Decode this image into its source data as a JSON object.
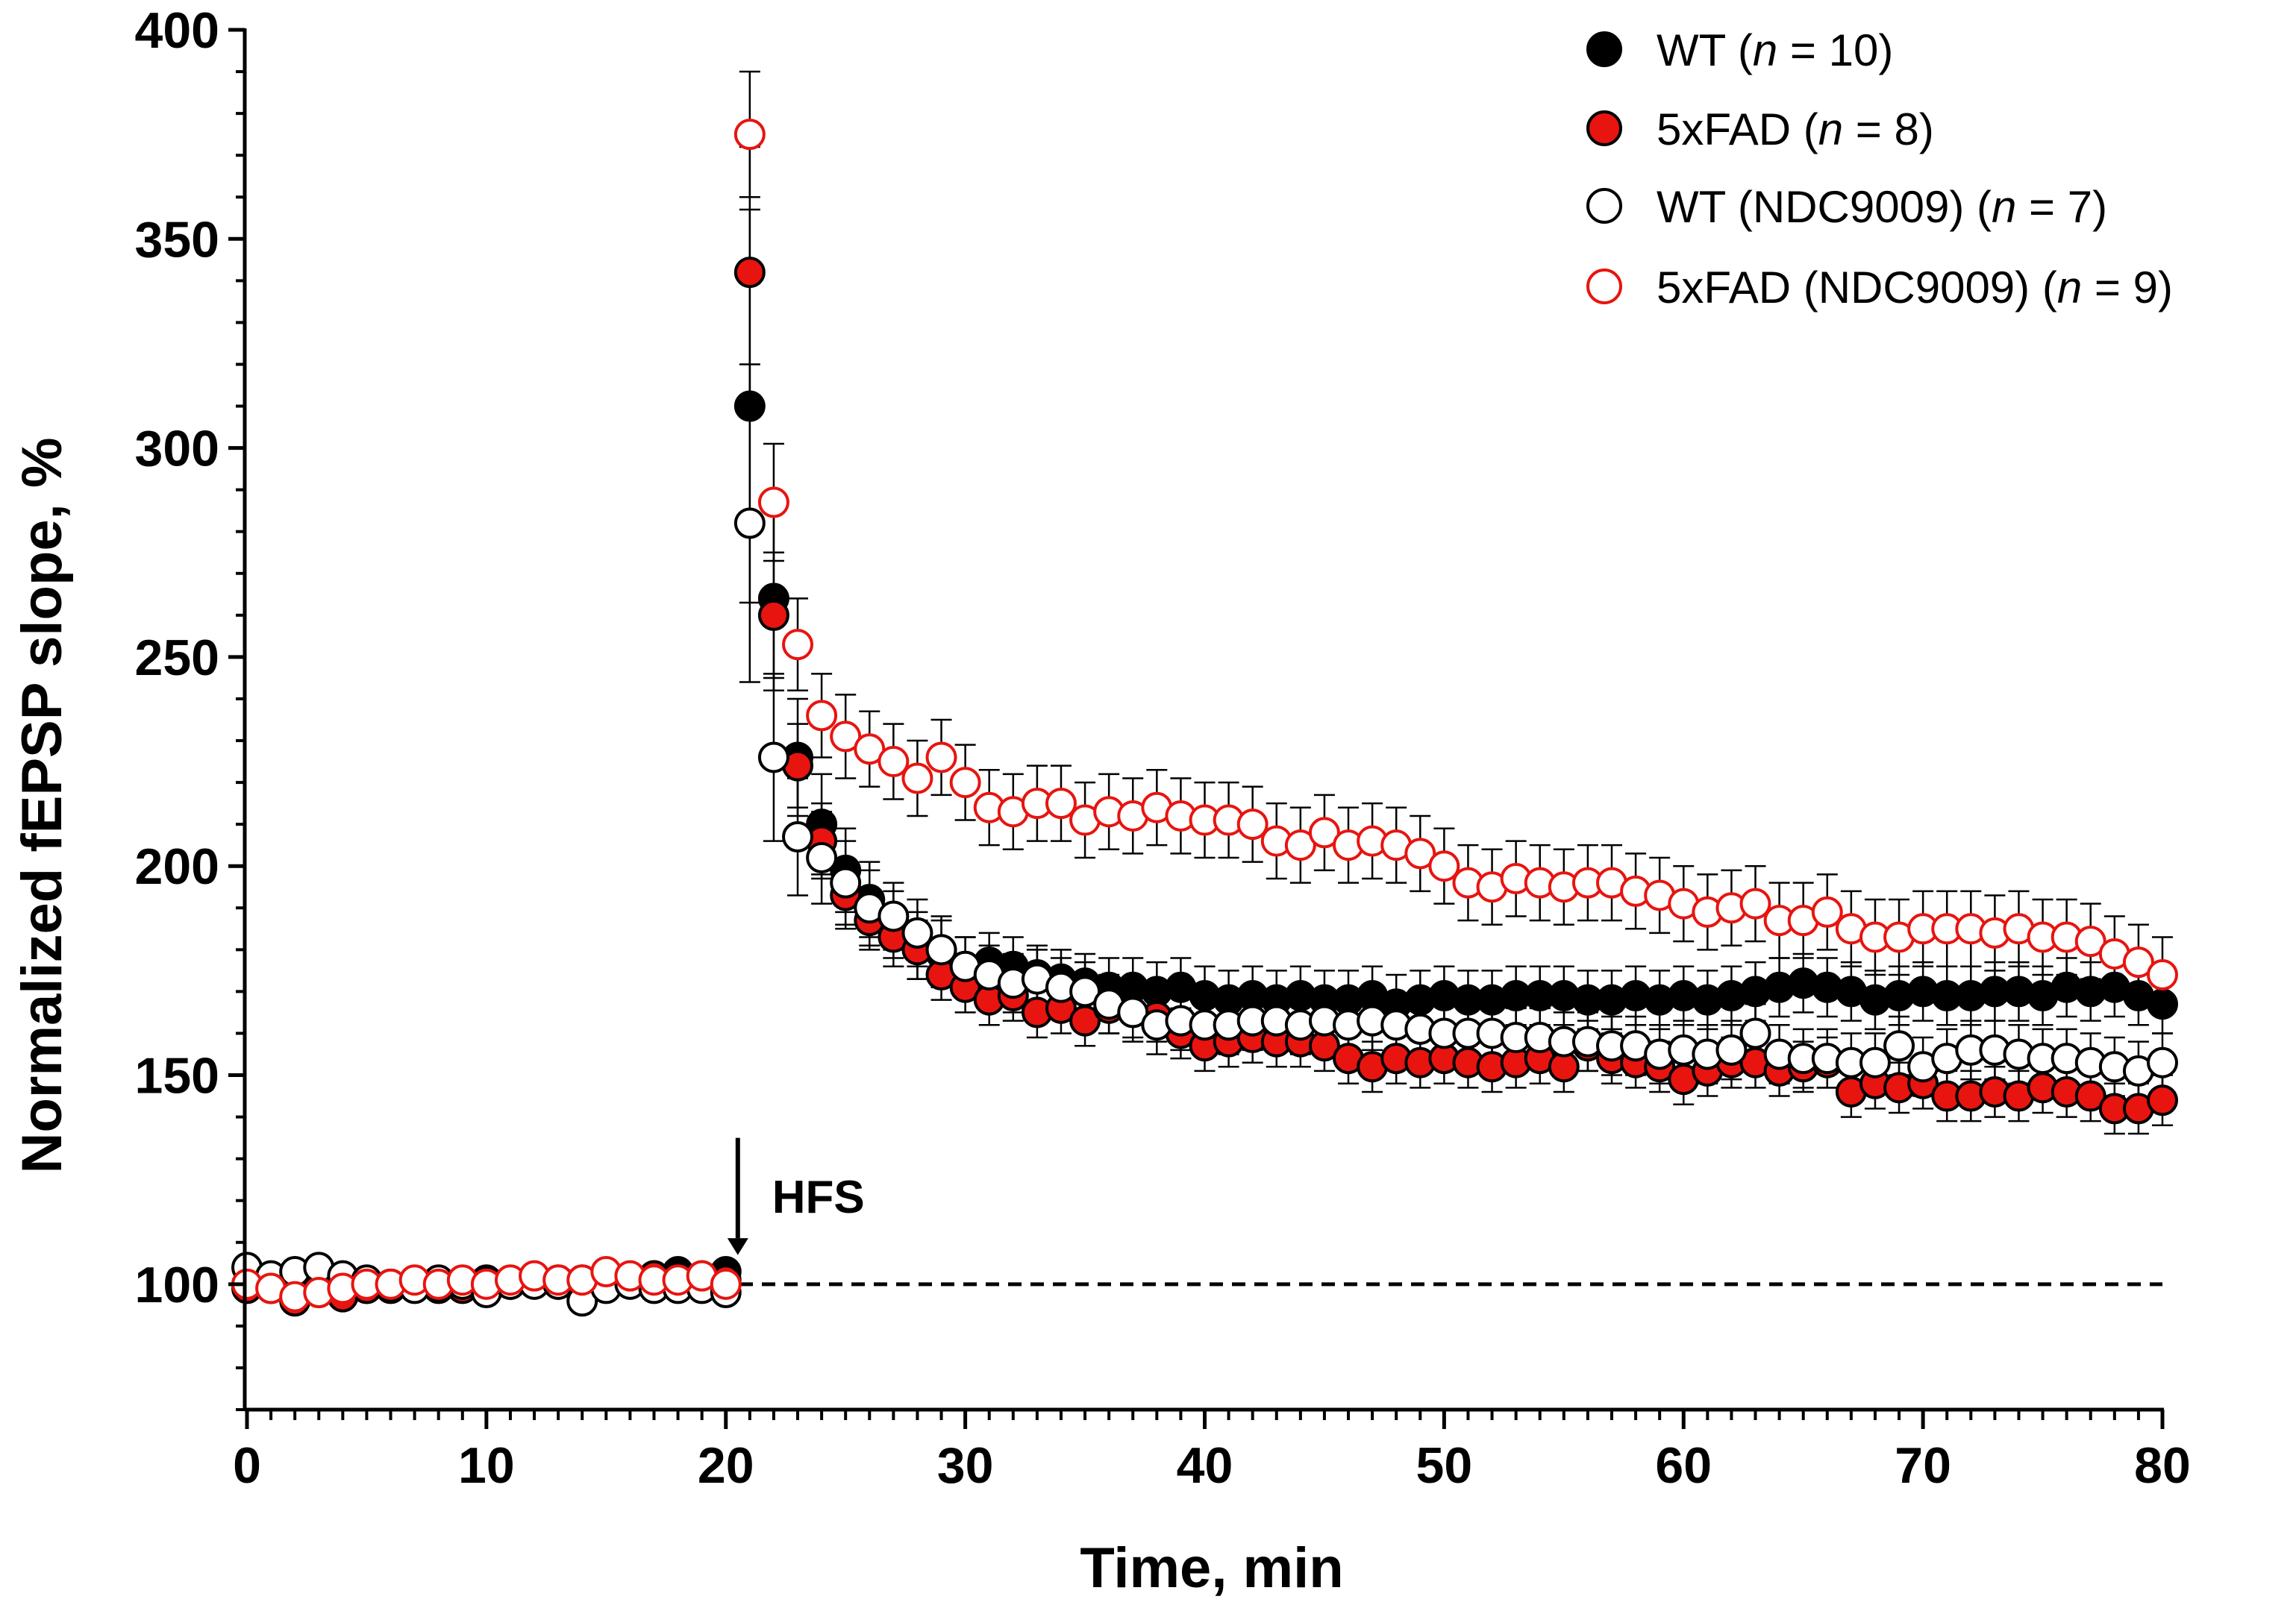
{
  "chart_data": {
    "type": "scatter",
    "title": "",
    "xlabel": "Time, min",
    "ylabel": "Normalized fEPSP slope, %",
    "xlim": [
      0,
      80
    ],
    "ylim": [
      70,
      400
    ],
    "xticks": [
      0,
      10,
      20,
      30,
      40,
      50,
      60,
      70,
      80
    ],
    "yticks": [
      100,
      150,
      200,
      250,
      300,
      350,
      400
    ],
    "grid": false,
    "legend_position": "top-right",
    "reference_line": {
      "y": 100,
      "style": "dashed",
      "x_range": [
        0,
        80
      ]
    },
    "annotations": [
      {
        "text": "HFS",
        "x": 20.5,
        "y": 110,
        "arrow": true
      }
    ],
    "series": [
      {
        "name": "WT",
        "n_label": "(n = 10)",
        "n_value": "10",
        "marker": "filled-circle",
        "fill": "#000000",
        "edge": "#000000",
        "x": [
          0,
          1,
          2,
          3,
          4,
          5,
          6,
          7,
          8,
          9,
          10,
          11,
          12,
          13,
          14,
          15,
          16,
          17,
          18,
          19,
          20,
          21,
          22,
          23,
          24,
          25,
          26,
          27,
          28,
          29,
          30,
          31,
          32,
          33,
          34,
          35,
          36,
          37,
          38,
          39,
          40,
          41,
          42,
          43,
          44,
          45,
          46,
          47,
          48,
          49,
          50,
          51,
          52,
          53,
          54,
          55,
          56,
          57,
          58,
          59,
          60,
          61,
          62,
          63,
          64,
          65,
          66,
          67,
          68,
          69,
          70,
          71,
          72,
          73,
          74,
          75,
          76,
          77,
          78,
          79,
          80
        ],
        "y": [
          100,
          99,
          98,
          99,
          98,
          99,
          99,
          100,
          99,
          100,
          101,
          100,
          101,
          100,
          101,
          102,
          101,
          102,
          103,
          102,
          103,
          310,
          264,
          226,
          210,
          199,
          192,
          186,
          181,
          179,
          176,
          177,
          176,
          174,
          173,
          172,
          171,
          171,
          170,
          171,
          169,
          168,
          169,
          168,
          169,
          168,
          168,
          169,
          167,
          168,
          169,
          168,
          168,
          169,
          169,
          169,
          168,
          168,
          169,
          168,
          169,
          168,
          169,
          170,
          171,
          172,
          171,
          170,
          168,
          169,
          170,
          169,
          169,
          170,
          170,
          169,
          171,
          170,
          171,
          169,
          167
        ],
        "err": [
          2,
          2,
          2,
          2,
          2,
          2,
          2,
          2,
          2,
          2,
          2,
          2,
          2,
          2,
          2,
          2,
          2,
          2,
          2,
          2,
          2,
          47,
          22,
          14,
          12,
          10,
          9,
          8,
          8,
          8,
          7,
          7,
          7,
          7,
          7,
          7,
          7,
          7,
          7,
          7,
          7,
          7,
          7,
          7,
          7,
          7,
          7,
          7,
          7,
          7,
          7,
          7,
          7,
          7,
          7,
          7,
          7,
          7,
          7,
          7,
          7,
          7,
          7,
          7,
          7,
          7,
          7,
          7,
          7,
          7,
          7,
          7,
          7,
          7,
          7,
          7,
          7,
          7,
          7,
          7,
          7
        ]
      },
      {
        "name": "5xFAD",
        "n_label": "(n = 8)",
        "n_value": "8",
        "marker": "filled-circle",
        "fill": "#e8140f",
        "edge": "#000000",
        "x": [
          0,
          1,
          2,
          3,
          4,
          5,
          6,
          7,
          8,
          9,
          10,
          11,
          12,
          13,
          14,
          15,
          16,
          17,
          18,
          19,
          20,
          21,
          22,
          23,
          24,
          25,
          26,
          27,
          28,
          29,
          30,
          31,
          32,
          33,
          34,
          35,
          36,
          37,
          38,
          39,
          40,
          41,
          42,
          43,
          44,
          45,
          46,
          47,
          48,
          49,
          50,
          51,
          52,
          53,
          54,
          55,
          56,
          57,
          58,
          59,
          60,
          61,
          62,
          63,
          64,
          65,
          66,
          67,
          68,
          69,
          70,
          71,
          72,
          73,
          74,
          75,
          76,
          77,
          78,
          79,
          80
        ],
        "y": [
          99,
          99,
          96,
          98,
          97,
          99,
          100,
          100,
          100,
          99,
          100,
          100,
          101,
          101,
          100,
          102,
          101,
          102,
          100,
          101,
          101,
          342,
          260,
          224,
          206,
          193,
          187,
          183,
          180,
          174,
          171,
          168,
          169,
          165,
          166,
          163,
          166,
          165,
          164,
          160,
          157,
          158,
          159,
          158,
          158,
          157,
          154,
          152,
          154,
          153,
          154,
          153,
          152,
          153,
          154,
          152,
          157,
          154,
          153,
          152,
          149,
          151,
          153,
          153,
          151,
          152,
          153,
          146,
          148,
          147,
          148,
          145,
          145,
          146,
          145,
          147,
          146,
          145,
          142,
          142,
          144
        ],
        "err": [
          2,
          2,
          2,
          2,
          2,
          2,
          2,
          2,
          2,
          2,
          2,
          2,
          2,
          2,
          2,
          2,
          2,
          2,
          2,
          2,
          2,
          30,
          15,
          10,
          9,
          8,
          7,
          7,
          7,
          6,
          6,
          6,
          6,
          6,
          6,
          6,
          6,
          6,
          6,
          6,
          6,
          6,
          6,
          6,
          6,
          6,
          6,
          6,
          6,
          6,
          6,
          6,
          6,
          6,
          6,
          6,
          6,
          6,
          6,
          6,
          6,
          6,
          6,
          6,
          6,
          6,
          6,
          6,
          6,
          6,
          6,
          6,
          6,
          6,
          6,
          6,
          6,
          6,
          6,
          6,
          6
        ]
      },
      {
        "name": "WT (NDC9009)",
        "n_label": "(n = 7)",
        "n_value": "7",
        "marker": "open-circle",
        "fill": "#ffffff",
        "edge": "#000000",
        "x": [
          0,
          1,
          2,
          3,
          4,
          5,
          6,
          7,
          8,
          9,
          10,
          11,
          12,
          13,
          14,
          15,
          16,
          17,
          18,
          19,
          20,
          21,
          22,
          23,
          24,
          25,
          26,
          27,
          28,
          29,
          30,
          31,
          32,
          33,
          34,
          35,
          36,
          37,
          38,
          39,
          40,
          41,
          42,
          43,
          44,
          45,
          46,
          47,
          48,
          49,
          50,
          51,
          52,
          53,
          54,
          55,
          56,
          57,
          58,
          59,
          60,
          61,
          62,
          63,
          64,
          65,
          66,
          67,
          68,
          69,
          70,
          71,
          72,
          73,
          74,
          75,
          76,
          77,
          78,
          79,
          80
        ],
        "y": [
          104,
          102,
          103,
          104,
          102,
          101,
          100,
          99,
          101,
          100,
          98,
          100,
          100,
          100,
          96,
          99,
          100,
          99,
          99,
          99,
          98,
          282,
          226,
          207,
          202,
          196,
          190,
          188,
          184,
          180,
          176,
          174,
          172,
          173,
          171,
          170,
          167,
          165,
          162,
          163,
          162,
          162,
          163,
          163,
          162,
          163,
          162,
          163,
          162,
          161,
          160,
          160,
          160,
          159,
          159,
          158,
          158,
          157,
          157,
          155,
          156,
          155,
          156,
          160,
          155,
          154,
          154,
          153,
          153,
          157,
          152,
          154,
          156,
          156,
          155,
          154,
          154,
          153,
          152,
          151,
          153
        ],
        "err": [
          2,
          2,
          2,
          2,
          2,
          2,
          2,
          2,
          2,
          2,
          2,
          2,
          2,
          2,
          2,
          2,
          2,
          2,
          2,
          2,
          2,
          38,
          20,
          14,
          11,
          10,
          9,
          8,
          8,
          8,
          7,
          7,
          7,
          7,
          7,
          7,
          7,
          7,
          7,
          7,
          7,
          7,
          7,
          7,
          7,
          7,
          7,
          7,
          7,
          7,
          7,
          7,
          7,
          7,
          7,
          7,
          7,
          7,
          7,
          7,
          7,
          7,
          7,
          7,
          7,
          7,
          7,
          7,
          7,
          7,
          7,
          7,
          7,
          7,
          7,
          7,
          7,
          7,
          7,
          7,
          7
        ]
      },
      {
        "name": "5xFAD (NDC9009)",
        "n_label": "(n = 9)",
        "n_value": "9",
        "marker": "open-circle",
        "fill": "#ffffff",
        "edge": "#e8140f",
        "x": [
          0,
          1,
          2,
          3,
          4,
          5,
          6,
          7,
          8,
          9,
          10,
          11,
          12,
          13,
          14,
          15,
          16,
          17,
          18,
          19,
          20,
          21,
          22,
          23,
          24,
          25,
          26,
          27,
          28,
          29,
          30,
          31,
          32,
          33,
          34,
          35,
          36,
          37,
          38,
          39,
          40,
          41,
          42,
          43,
          44,
          45,
          46,
          47,
          48,
          49,
          50,
          51,
          52,
          53,
          54,
          55,
          56,
          57,
          58,
          59,
          60,
          61,
          62,
          63,
          64,
          65,
          66,
          67,
          68,
          69,
          70,
          71,
          72,
          73,
          74,
          75,
          76,
          77,
          78,
          79,
          80
        ],
        "y": [
          100,
          99,
          97,
          98,
          99,
          100,
          100,
          101,
          100,
          101,
          100,
          101,
          102,
          101,
          101,
          103,
          102,
          101,
          101,
          102,
          100,
          375,
          287,
          253,
          236,
          231,
          228,
          225,
          221,
          226,
          220,
          214,
          213,
          215,
          215,
          211,
          213,
          212,
          214,
          212,
          211,
          211,
          210,
          206,
          205,
          208,
          205,
          206,
          205,
          203,
          200,
          196,
          195,
          197,
          196,
          195,
          196,
          196,
          194,
          193,
          191,
          189,
          190,
          191,
          187,
          187,
          189,
          185,
          183,
          183,
          185,
          185,
          185,
          184,
          185,
          183,
          183,
          182,
          179,
          177,
          174
        ],
        "err": [
          2,
          2,
          2,
          2,
          2,
          2,
          2,
          2,
          2,
          2,
          2,
          2,
          2,
          2,
          2,
          2,
          2,
          2,
          2,
          2,
          2,
          15,
          14,
          11,
          10,
          10,
          9,
          9,
          9,
          9,
          9,
          9,
          9,
          9,
          9,
          9,
          9,
          9,
          9,
          9,
          9,
          9,
          9,
          9,
          9,
          9,
          9,
          9,
          9,
          9,
          9,
          9,
          9,
          9,
          9,
          9,
          9,
          9,
          9,
          9,
          9,
          9,
          9,
          9,
          9,
          9,
          9,
          9,
          9,
          9,
          9,
          9,
          9,
          9,
          9,
          9,
          9,
          9,
          9,
          9,
          9
        ]
      }
    ]
  }
}
